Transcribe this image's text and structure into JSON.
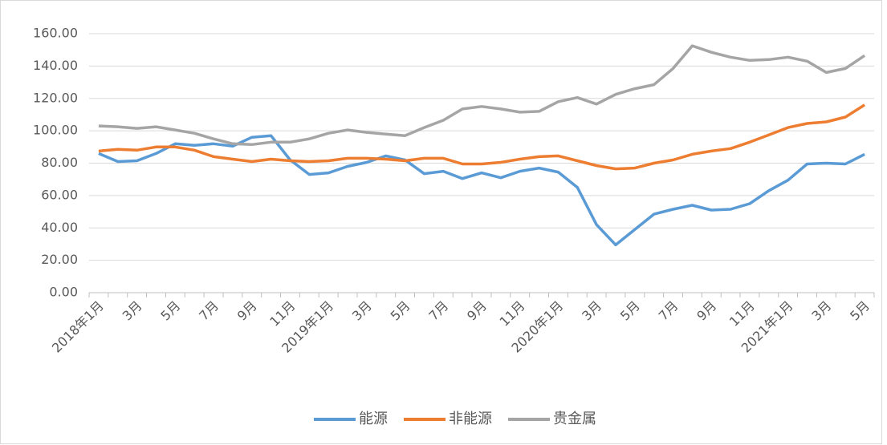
{
  "chart_data": {
    "type": "line",
    "categories": [
      "2018年1月",
      null,
      "3月",
      null,
      "5月",
      null,
      "7月",
      null,
      "9月",
      null,
      "11月",
      null,
      "2019年1月",
      null,
      "3月",
      null,
      "5月",
      null,
      "7月",
      null,
      "9月",
      null,
      "11月",
      null,
      "2020年1月",
      null,
      "3月",
      null,
      "5月",
      null,
      "7月",
      null,
      "9月",
      null,
      "11月",
      null,
      "2021年1月",
      null,
      "3月",
      null,
      "5月"
    ],
    "series": [
      {
        "name": "能源",
        "color": "#5b9bd5",
        "values": [
          86,
          81,
          81.5,
          86,
          92,
          91,
          92,
          90.5,
          96,
          97,
          82,
          73,
          74,
          78,
          80.5,
          84.5,
          82,
          73.5,
          75,
          70.5,
          74,
          71,
          75,
          77,
          74.5,
          65,
          42,
          29.5,
          39,
          48.5,
          51.5,
          54,
          51,
          51.5,
          55,
          63,
          69.5,
          79.5,
          80,
          79.5,
          85.5
        ]
      },
      {
        "name": "非能源",
        "color": "#ed7d31",
        "values": [
          87.5,
          88.5,
          88,
          90,
          90,
          88,
          84,
          82.5,
          81,
          82.5,
          81.5,
          81,
          81.5,
          83,
          83,
          82.5,
          81.5,
          83,
          83,
          79.5,
          79.5,
          80.5,
          82.5,
          84,
          84.5,
          81.5,
          78.5,
          76.5,
          77,
          80,
          82,
          85.5,
          87.5,
          89,
          93,
          97.5,
          102,
          104.5,
          105.5,
          108.5,
          116
        ]
      },
      {
        "name": "贵金属",
        "color": "#a5a5a5",
        "values": [
          103,
          102.5,
          101.5,
          102.5,
          100.5,
          98.5,
          95,
          92,
          91.5,
          93,
          93,
          95,
          98.5,
          100.5,
          99,
          98,
          97,
          102,
          106.5,
          113.5,
          115,
          113.5,
          111.5,
          112,
          118,
          120.5,
          116.5,
          122.5,
          126,
          128.5,
          138.5,
          152.5,
          148.5,
          145.5,
          143.5,
          144,
          145.5,
          143,
          136,
          138.5,
          146.5
        ]
      }
    ],
    "ylim": [
      0,
      160
    ],
    "yticks": [
      {
        "value": 0,
        "label": "0.00"
      },
      {
        "value": 20,
        "label": "20.00"
      },
      {
        "value": 40,
        "label": "40.00"
      },
      {
        "value": 60,
        "label": "60.00"
      },
      {
        "value": 80,
        "label": "80.00"
      },
      {
        "value": 100,
        "label": "100.00"
      },
      {
        "value": 120,
        "label": "120.00"
      },
      {
        "value": 140,
        "label": "140.00"
      },
      {
        "value": 160,
        "label": "160.00"
      }
    ],
    "grid": true,
    "legend": "bottom"
  }
}
